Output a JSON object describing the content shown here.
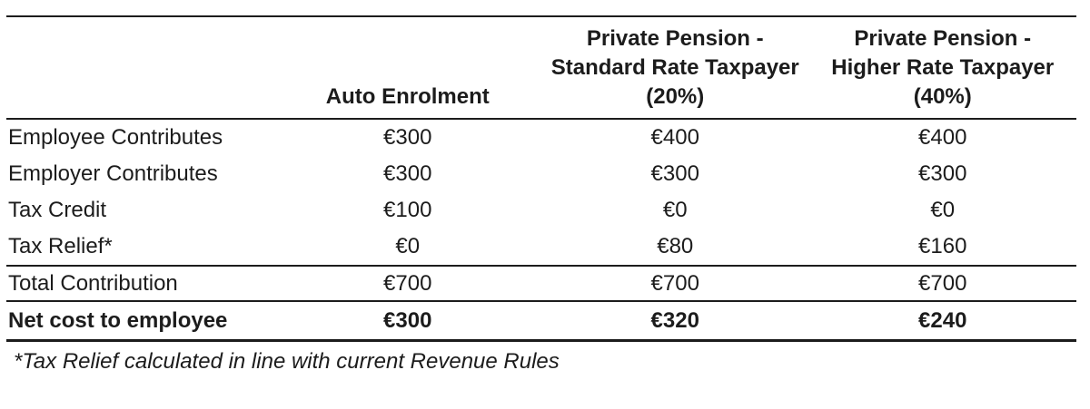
{
  "colors": {
    "text": "#1c1c1c",
    "background": "#ffffff",
    "rule": "#1c1c1c"
  },
  "table": {
    "header": {
      "blank": "",
      "auto": "Auto Enrolment",
      "standard": {
        "l1": "Private Pension -",
        "l2": "Standard Rate Taxpayer",
        "l3": "(20%)"
      },
      "higher": {
        "l1": "Private Pension -",
        "l2": "Higher Rate Taxpayer",
        "l3": "(40%)"
      }
    },
    "rows": [
      {
        "label": "Employee Contributes",
        "auto": "€300",
        "standard": "€400",
        "higher": "€400"
      },
      {
        "label": "Employer Contributes",
        "auto": "€300",
        "standard": "€300",
        "higher": "€300"
      },
      {
        "label": "Tax Credit",
        "auto": "€100",
        "standard": "€0",
        "higher": "€0"
      },
      {
        "label": "Tax Relief*",
        "auto": "€0",
        "standard": "€80",
        "higher": "€160"
      }
    ],
    "total_row": {
      "label": "Total Contribution",
      "auto": "€700",
      "standard": "€700",
      "higher": "€700"
    },
    "net_row": {
      "label": "Net cost to employee",
      "auto": "€300",
      "standard": "€320",
      "higher": "€240"
    },
    "footnote": "*Tax Relief calculated in line with current Revenue Rules"
  },
  "chart_data": {
    "type": "table",
    "columns": [
      "",
      "Auto Enrolment",
      "Private Pension - Standard Rate Taxpayer (20%)",
      "Private Pension - Higher Rate Taxpayer (40%)"
    ],
    "rows": [
      [
        "Employee Contributes",
        "€300",
        "€400",
        "€400"
      ],
      [
        "Employer Contributes",
        "€300",
        "€300",
        "€300"
      ],
      [
        "Tax Credit",
        "€100",
        "€0",
        "€0"
      ],
      [
        "Tax Relief*",
        "€0",
        "€80",
        "€160"
      ],
      [
        "Total Contribution",
        "€700",
        "€700",
        "€700"
      ],
      [
        "Net cost to employee",
        "€300",
        "€320",
        "€240"
      ]
    ],
    "footnote": "*Tax Relief calculated in line with current Revenue Rules"
  }
}
